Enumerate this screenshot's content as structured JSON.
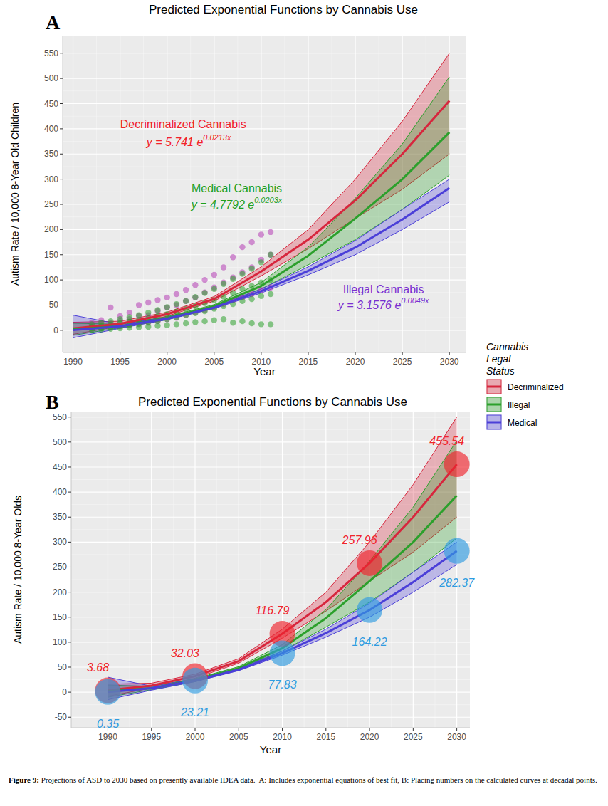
{
  "chart_data": [
    {
      "type": "line",
      "panel": "A",
      "title": "Predicted Exponential Functions by Cannabis Use",
      "xlabel": "Year",
      "ylabel": "Autism Rate / 10,000 8-Year Old Children",
      "xlim": [
        1988.9,
        2031.8
      ],
      "ylim": [
        -44,
        585
      ],
      "xticks": [
        1990,
        1995,
        2000,
        2005,
        2010,
        2015,
        2020,
        2025,
        2030
      ],
      "yticks": [
        0,
        50,
        100,
        150,
        200,
        250,
        300,
        350,
        400,
        450,
        500,
        550
      ],
      "grid": true,
      "series": [
        {
          "type": "line",
          "color": "#d7263d",
          "x": [
            1990,
            1995,
            2000,
            2005,
            2010,
            2015,
            2020,
            2025,
            2030
          ],
          "values": [
            3.68,
            13,
            32.03,
            62,
            116.79,
            180,
            257.96,
            350,
            455.54
          ],
          "lower": [
            -8,
            8,
            28,
            58,
            108,
            162,
            222,
            280,
            350
          ],
          "upper": [
            16,
            18,
            36,
            67,
            126,
            200,
            300,
            415,
            550
          ]
        },
        {
          "type": "line",
          "color": "#2ca02c",
          "x": [
            1990,
            1995,
            2000,
            2005,
            2010,
            2015,
            2020,
            2025,
            2030
          ],
          "values": [
            2,
            8,
            24,
            48,
            88,
            148,
            222,
            300,
            393
          ],
          "lower": [
            -10,
            5,
            21,
            45,
            82,
            130,
            180,
            240,
            308
          ],
          "upper": [
            14,
            12,
            27,
            51,
            95,
            165,
            262,
            370,
            503
          ]
        },
        {
          "type": "line",
          "color": "#4b3fd8",
          "x": [
            1990,
            1995,
            2000,
            2005,
            2010,
            2015,
            2020,
            2025,
            2030
          ],
          "values": [
            0.35,
            8,
            23.21,
            45,
            77.83,
            118,
            164.22,
            220,
            282.37
          ],
          "lower": [
            -15,
            4,
            21,
            43,
            74,
            110,
            150,
            200,
            255
          ],
          "upper": [
            30,
            12,
            26,
            48,
            82,
            126,
            178,
            240,
            300
          ]
        },
        {
          "type": "scatter",
          "marker": "circle",
          "color": "#b43cb4",
          "x": [
            1992,
            1992,
            1992,
            1993,
            1993,
            1993,
            1994,
            1994,
            1994,
            1995,
            1995,
            1995,
            1996,
            1996,
            1996,
            1997,
            1997,
            1997,
            1998,
            1998,
            1998,
            1999,
            1999,
            1999,
            2000,
            2000,
            2000,
            2001,
            2001,
            2001,
            2002,
            2002,
            2002,
            2003,
            2003,
            2003,
            2004,
            2004,
            2004,
            2005,
            2005,
            2005,
            2006,
            2006,
            2006,
            2007,
            2007,
            2007,
            2008,
            2008,
            2008,
            2009,
            2009,
            2009,
            2010,
            2010,
            2010,
            2011,
            2011,
            2011
          ],
          "values": [
            3,
            8,
            15,
            5,
            10,
            20,
            6,
            14,
            45,
            8,
            18,
            28,
            10,
            22,
            35,
            12,
            28,
            50,
            15,
            30,
            55,
            18,
            38,
            60,
            22,
            45,
            65,
            25,
            50,
            72,
            30,
            58,
            80,
            35,
            65,
            90,
            40,
            75,
            100,
            45,
            85,
            110,
            52,
            95,
            125,
            60,
            105,
            145,
            65,
            115,
            165,
            72,
            125,
            175,
            80,
            140,
            190,
            85,
            150,
            195
          ]
        },
        {
          "type": "scatter",
          "marker": "circle",
          "color": "#2ca02c",
          "x": [
            1992,
            1992,
            1992,
            1992,
            1993,
            1993,
            1993,
            1993,
            1994,
            1994,
            1994,
            1994,
            1995,
            1995,
            1995,
            1995,
            1996,
            1996,
            1996,
            1996,
            1997,
            1997,
            1997,
            1997,
            1998,
            1998,
            1998,
            1998,
            1999,
            1999,
            1999,
            1999,
            2000,
            2000,
            2000,
            2000,
            2001,
            2001,
            2001,
            2001,
            2002,
            2002,
            2002,
            2002,
            2003,
            2003,
            2003,
            2003,
            2004,
            2004,
            2004,
            2004,
            2005,
            2005,
            2005,
            2005,
            2006,
            2006,
            2006,
            2006,
            2007,
            2007,
            2007,
            2007,
            2008,
            2008,
            2008,
            2008,
            2009,
            2009,
            2009,
            2009,
            2010,
            2010,
            2010,
            2010,
            2011,
            2011,
            2011,
            2011
          ],
          "values": [
            1,
            4,
            7,
            12,
            2,
            5,
            9,
            15,
            3,
            7,
            11,
            18,
            4,
            9,
            14,
            22,
            5,
            11,
            17,
            26,
            6,
            13,
            20,
            30,
            7,
            16,
            24,
            35,
            9,
            19,
            28,
            40,
            10,
            22,
            32,
            46,
            12,
            26,
            37,
            52,
            14,
            30,
            42,
            58,
            16,
            34,
            48,
            66,
            18,
            38,
            54,
            74,
            20,
            43,
            60,
            82,
            22,
            48,
            67,
            92,
            15,
            52,
            74,
            102,
            18,
            58,
            82,
            112,
            14,
            62,
            88,
            122,
            12,
            68,
            95,
            135,
            12,
            72,
            100,
            150
          ]
        }
      ],
      "annotations": [
        {
          "text": "Decriminalized Cannabis",
          "x": 2001.7,
          "y": 401,
          "color": "#f2222a"
        },
        {
          "text": "y = 5.741 e",
          "superscript": "0.0213x",
          "x": 2002.3,
          "y": 366,
          "color": "#f2222a"
        },
        {
          "text": "Medical Cannabis",
          "x": 2007.4,
          "y": 274,
          "color": "#1ea01e"
        },
        {
          "text": "y = 4.7792 e",
          "superscript": "0.0203x",
          "x": 2007.4,
          "y": 241,
          "color": "#1ea01e"
        },
        {
          "text": "Illegal Cannabis",
          "x": 2023,
          "y": 73,
          "color": "#7a2fd0"
        },
        {
          "text": "y = 3.1576 e",
          "superscript": "0.0049x",
          "x": 2023,
          "y": 42,
          "color": "#7a2fd0"
        }
      ]
    },
    {
      "type": "line",
      "panel": "B",
      "title": "Predicted Exponential Functions by Cannabis Use",
      "xlabel": "Year",
      "ylabel": "Autism Rate / 10,000 8-Year Olds",
      "xlim": [
        1985.8,
        2031.5
      ],
      "ylim": [
        -71,
        561
      ],
      "xticks": [
        1990,
        1995,
        2000,
        2005,
        2010,
        2015,
        2020,
        2025,
        2030
      ],
      "yticks": [
        -50,
        0,
        50,
        100,
        150,
        200,
        250,
        300,
        350,
        400,
        450,
        500,
        550
      ],
      "grid": true,
      "legend": "right",
      "legend_title": [
        "Cannabis",
        "Legal",
        "Status"
      ],
      "series": [
        {
          "name": "Decriminalized",
          "type": "line",
          "color": "#d7263d",
          "x": [
            1990,
            1995,
            2000,
            2005,
            2010,
            2015,
            2020,
            2025,
            2030
          ],
          "values": [
            3.68,
            13,
            32.03,
            62,
            116.79,
            180,
            257.96,
            350,
            455.54
          ],
          "lower": [
            -8,
            8,
            28,
            58,
            108,
            162,
            222,
            280,
            350
          ],
          "upper": [
            16,
            18,
            36,
            67,
            126,
            200,
            300,
            415,
            550
          ]
        },
        {
          "name": "Illegal",
          "type": "line",
          "color": "#2ca02c",
          "x": [
            1990,
            1995,
            2000,
            2005,
            2010,
            2015,
            2020,
            2025,
            2030
          ],
          "values": [
            2,
            8,
            24,
            48,
            88,
            148,
            222,
            300,
            393
          ],
          "lower": [
            -10,
            5,
            21,
            45,
            82,
            130,
            180,
            240,
            308
          ],
          "upper": [
            14,
            12,
            27,
            51,
            95,
            165,
            262,
            370,
            503
          ]
        },
        {
          "name": "Medical",
          "type": "line",
          "color": "#4b3fd8",
          "x": [
            1990,
            1995,
            2000,
            2005,
            2010,
            2015,
            2020,
            2025,
            2030
          ],
          "values": [
            0.35,
            8,
            23.21,
            45,
            77.83,
            118,
            164.22,
            220,
            282.37
          ],
          "lower": [
            -15,
            4,
            21,
            43,
            74,
            110,
            150,
            200,
            255
          ],
          "upper": [
            30,
            12,
            26,
            48,
            82,
            126,
            178,
            240,
            300
          ]
        },
        {
          "type": "scatter",
          "marker": "circle",
          "color": "#f0242c",
          "data_labels": true,
          "x": [
            1990,
            2000,
            2010,
            2020,
            2030
          ],
          "values": [
            3.68,
            32.03,
            116.79,
            257.96,
            455.54
          ]
        },
        {
          "type": "scatter",
          "marker": "circle",
          "color": "#2f9be0",
          "data_labels": true,
          "x": [
            1990,
            2000,
            2010,
            2020,
            2030
          ],
          "values": [
            0.35,
            23.21,
            77.83,
            164.22,
            282.37
          ]
        }
      ]
    }
  ],
  "caption": {
    "label": "Figure 9:",
    "text": "Projections of ASD to 2030 based on presently available IDEA data.  A: Includes exponential equations of best fit, B: Placing numbers on the calculated curves at decadal points."
  }
}
